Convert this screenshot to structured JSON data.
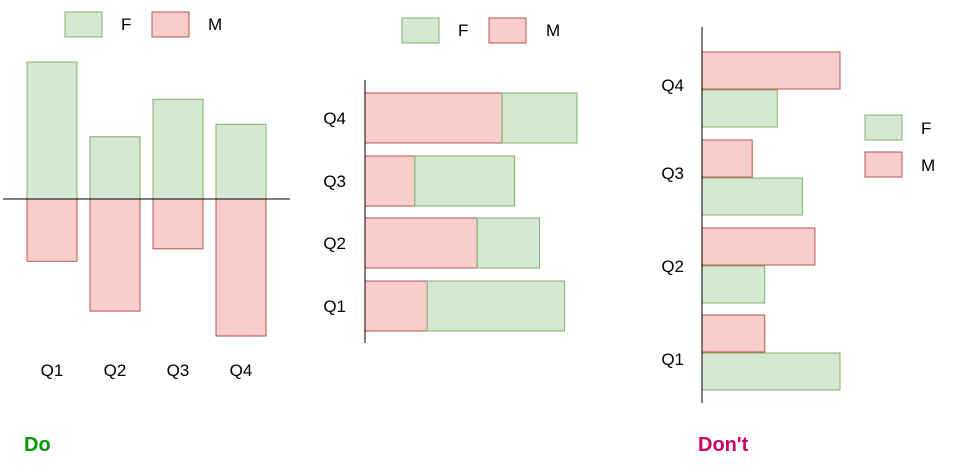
{
  "colors": {
    "f_fill": "#d5e8d4",
    "f_stroke": "#82b366",
    "m_fill": "#f8cecc",
    "m_stroke": "#b85450",
    "axis": "#000000",
    "do_caption": "#009900",
    "dont_caption": "#cc0066"
  },
  "captions": {
    "do": "Do",
    "dont": "Don't"
  },
  "chart_data": [
    {
      "type": "bar",
      "orientation": "vertical",
      "layout": "diverging",
      "categories": [
        "Q1",
        "Q2",
        "Q3",
        "Q4"
      ],
      "series": [
        {
          "name": "F",
          "values": [
            110,
            50,
            80,
            60
          ]
        },
        {
          "name": "M",
          "values": [
            -50,
            -90,
            -40,
            -110
          ]
        }
      ],
      "legend": "top",
      "grid": false,
      "ylim": [
        -110,
        110
      ]
    },
    {
      "type": "bar",
      "orientation": "horizontal",
      "layout": "stacked",
      "categories": [
        "Q1",
        "Q2",
        "Q3",
        "Q4"
      ],
      "series": [
        {
          "name": "M",
          "values": [
            50,
            90,
            40,
            110
          ]
        },
        {
          "name": "F",
          "values": [
            110,
            50,
            80,
            60
          ]
        }
      ],
      "legend": "top",
      "grid": false,
      "xlim": [
        0,
        170
      ]
    },
    {
      "type": "bar",
      "orientation": "horizontal",
      "layout": "grouped",
      "categories": [
        "Q1",
        "Q2",
        "Q3",
        "Q4"
      ],
      "series": [
        {
          "name": "F",
          "values": [
            110,
            50,
            80,
            60
          ]
        },
        {
          "name": "M",
          "values": [
            50,
            90,
            40,
            110
          ]
        }
      ],
      "legend": "right",
      "grid": false,
      "xlim": [
        0,
        110
      ]
    }
  ]
}
